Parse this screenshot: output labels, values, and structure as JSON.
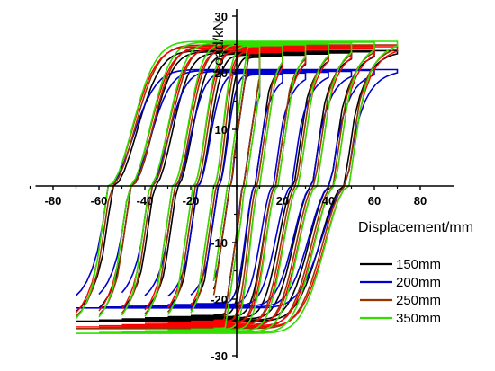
{
  "chart_data": {
    "type": "line",
    "title": "",
    "xlabel": "Displacement/mm",
    "ylabel": "Load/kN",
    "xlim": [
      -90,
      90
    ],
    "ylim": [
      -30,
      30
    ],
    "x_ticks": [
      -80,
      -60,
      -40,
      -20,
      0,
      20,
      40,
      60,
      80
    ],
    "x_tick_labels": [
      "-80",
      "-60",
      "-40",
      "-20",
      "0",
      "20",
      "40",
      "60",
      "80"
    ],
    "y_ticks": [
      -30,
      -20,
      -10,
      0,
      10,
      20,
      30
    ],
    "y_tick_labels": [
      "-30",
      "-20",
      "-10",
      "0",
      "10",
      "20",
      "30"
    ],
    "grid": false,
    "legend_position": "bottom-right",
    "series": [
      {
        "name": "150mm",
        "color": "#000000",
        "max_displacement": 70,
        "loop_amplitudes": [
          10,
          20,
          30,
          40,
          50,
          60,
          70
        ],
        "yield_displacement": 5,
        "initial_stiffness": 2.8,
        "F_pos": 22.5,
        "F_neg": -22.5,
        "hardening_slope": 0.02,
        "x_at_zero_load_pos": [
          3,
          8,
          17,
          25,
          33,
          41,
          47
        ],
        "x_at_zero_load_neg": [
          -3,
          -8,
          -17,
          -26,
          -36,
          -46,
          -54
        ]
      },
      {
        "name": "200mm",
        "color": "#0000cc",
        "max_displacement": 70,
        "loop_amplitudes": [
          10,
          20,
          30,
          40,
          50,
          60,
          70
        ],
        "yield_displacement": 5,
        "initial_stiffness": 2.8,
        "F_pos": 19.5,
        "F_neg": -20.5,
        "hardening_slope": 0.015,
        "x_at_zero_load_pos": [
          3,
          8,
          16,
          24,
          33,
          41,
          48
        ],
        "x_at_zero_load_neg": [
          -3,
          -8,
          -17,
          -27,
          -38,
          -47,
          -56
        ]
      },
      {
        "name": "250mm",
        "color": "#993300",
        "max_displacement": 70,
        "loop_amplitudes": [
          10,
          20,
          30,
          40,
          50,
          60,
          70
        ],
        "yield_displacement": 5,
        "initial_stiffness": 2.8,
        "F_pos": 23.5,
        "F_neg": -23.8,
        "hardening_slope": 0.02,
        "x_at_zero_load_pos": [
          3,
          9,
          17,
          26,
          34,
          42,
          48
        ],
        "x_at_zero_load_neg": [
          -3,
          -9,
          -18,
          -27,
          -37,
          -46,
          -55
        ]
      },
      {
        "name": "350mm",
        "color": "#33dd00",
        "max_displacement": 70,
        "loop_amplitudes": [
          10,
          20,
          30,
          40,
          50,
          60,
          70
        ],
        "yield_displacement": 5,
        "initial_stiffness": 2.8,
        "F_pos": 24.5,
        "F_neg": -25.0,
        "hardening_slope": 0.015,
        "x_at_zero_load_pos": [
          4,
          10,
          18,
          27,
          35,
          43,
          49
        ],
        "x_at_zero_load_neg": [
          -4,
          -10,
          -19,
          -28,
          -38,
          -47,
          -56
        ]
      }
    ],
    "extra_red_curve_color": "#ff0000"
  },
  "legend": {
    "items": [
      {
        "label": "150mm",
        "color": "#000000"
      },
      {
        "label": "200mm",
        "color": "#0000cc"
      },
      {
        "label": "250mm",
        "color": "#993300"
      },
      {
        "label": "350mm",
        "color": "#33dd00"
      }
    ]
  },
  "axes": {
    "xlabel": "Displacement/mm",
    "ylabel": "Load/kN"
  }
}
